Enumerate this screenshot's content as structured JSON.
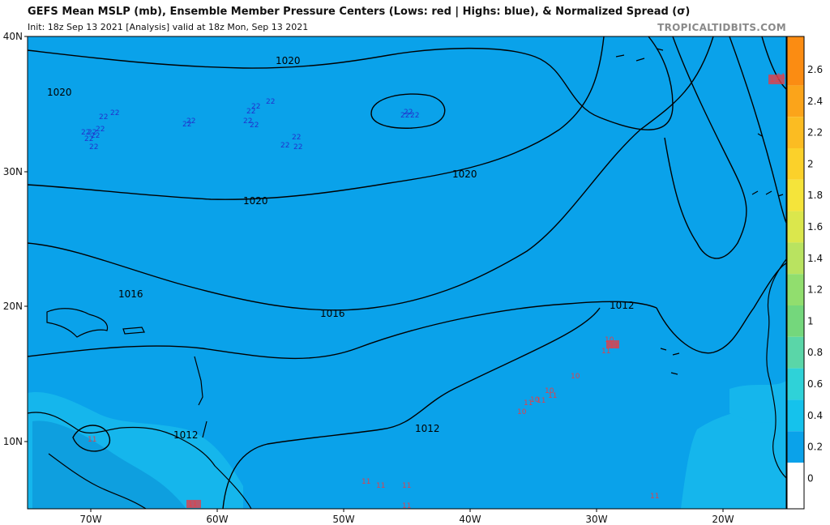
{
  "header": {
    "title": "GEFS Mean MSLP (mb), Ensemble Member Pressure Centers (Lows: red | Highs: blue), & Normalized Spread (σ)",
    "subtitle": "Init: 18z Sep 13 2021   [Analysis]   valid at 18z Mon, Sep 13 2021",
    "credit": "TROPICALTIDBITS.COM"
  },
  "map": {
    "lat_labels": [
      "40N",
      "30N",
      "20N",
      "10N"
    ],
    "lon_labels": [
      "70W",
      "60W",
      "50W",
      "40W",
      "30W",
      "20W"
    ],
    "background_color": "#0aa2ea",
    "contour_color": "#000000",
    "contour_labels": [
      "1020",
      "1020",
      "1020",
      "1020",
      "1016",
      "1016",
      "1012",
      "1012",
      "1012"
    ],
    "high_marker": "22",
    "low_markers": [
      "10",
      "11"
    ]
  },
  "colorbar": {
    "ticks": [
      "2.6",
      "2.4",
      "2.2",
      "2",
      "1.8",
      "1.6",
      "1.4",
      "1.2",
      "1",
      "0.8",
      "0.6",
      "0.4",
      "0.2",
      "0"
    ],
    "colors": [
      "#fb8c12",
      "#fba41a",
      "#fbbc22",
      "#fbd12a",
      "#f5e43a",
      "#dbe74c",
      "#b9e360",
      "#91de6e",
      "#74d77c",
      "#5ad6a8",
      "#2fd2d8",
      "#15c2ec",
      "#0aa2ea",
      "#ffffff"
    ]
  }
}
